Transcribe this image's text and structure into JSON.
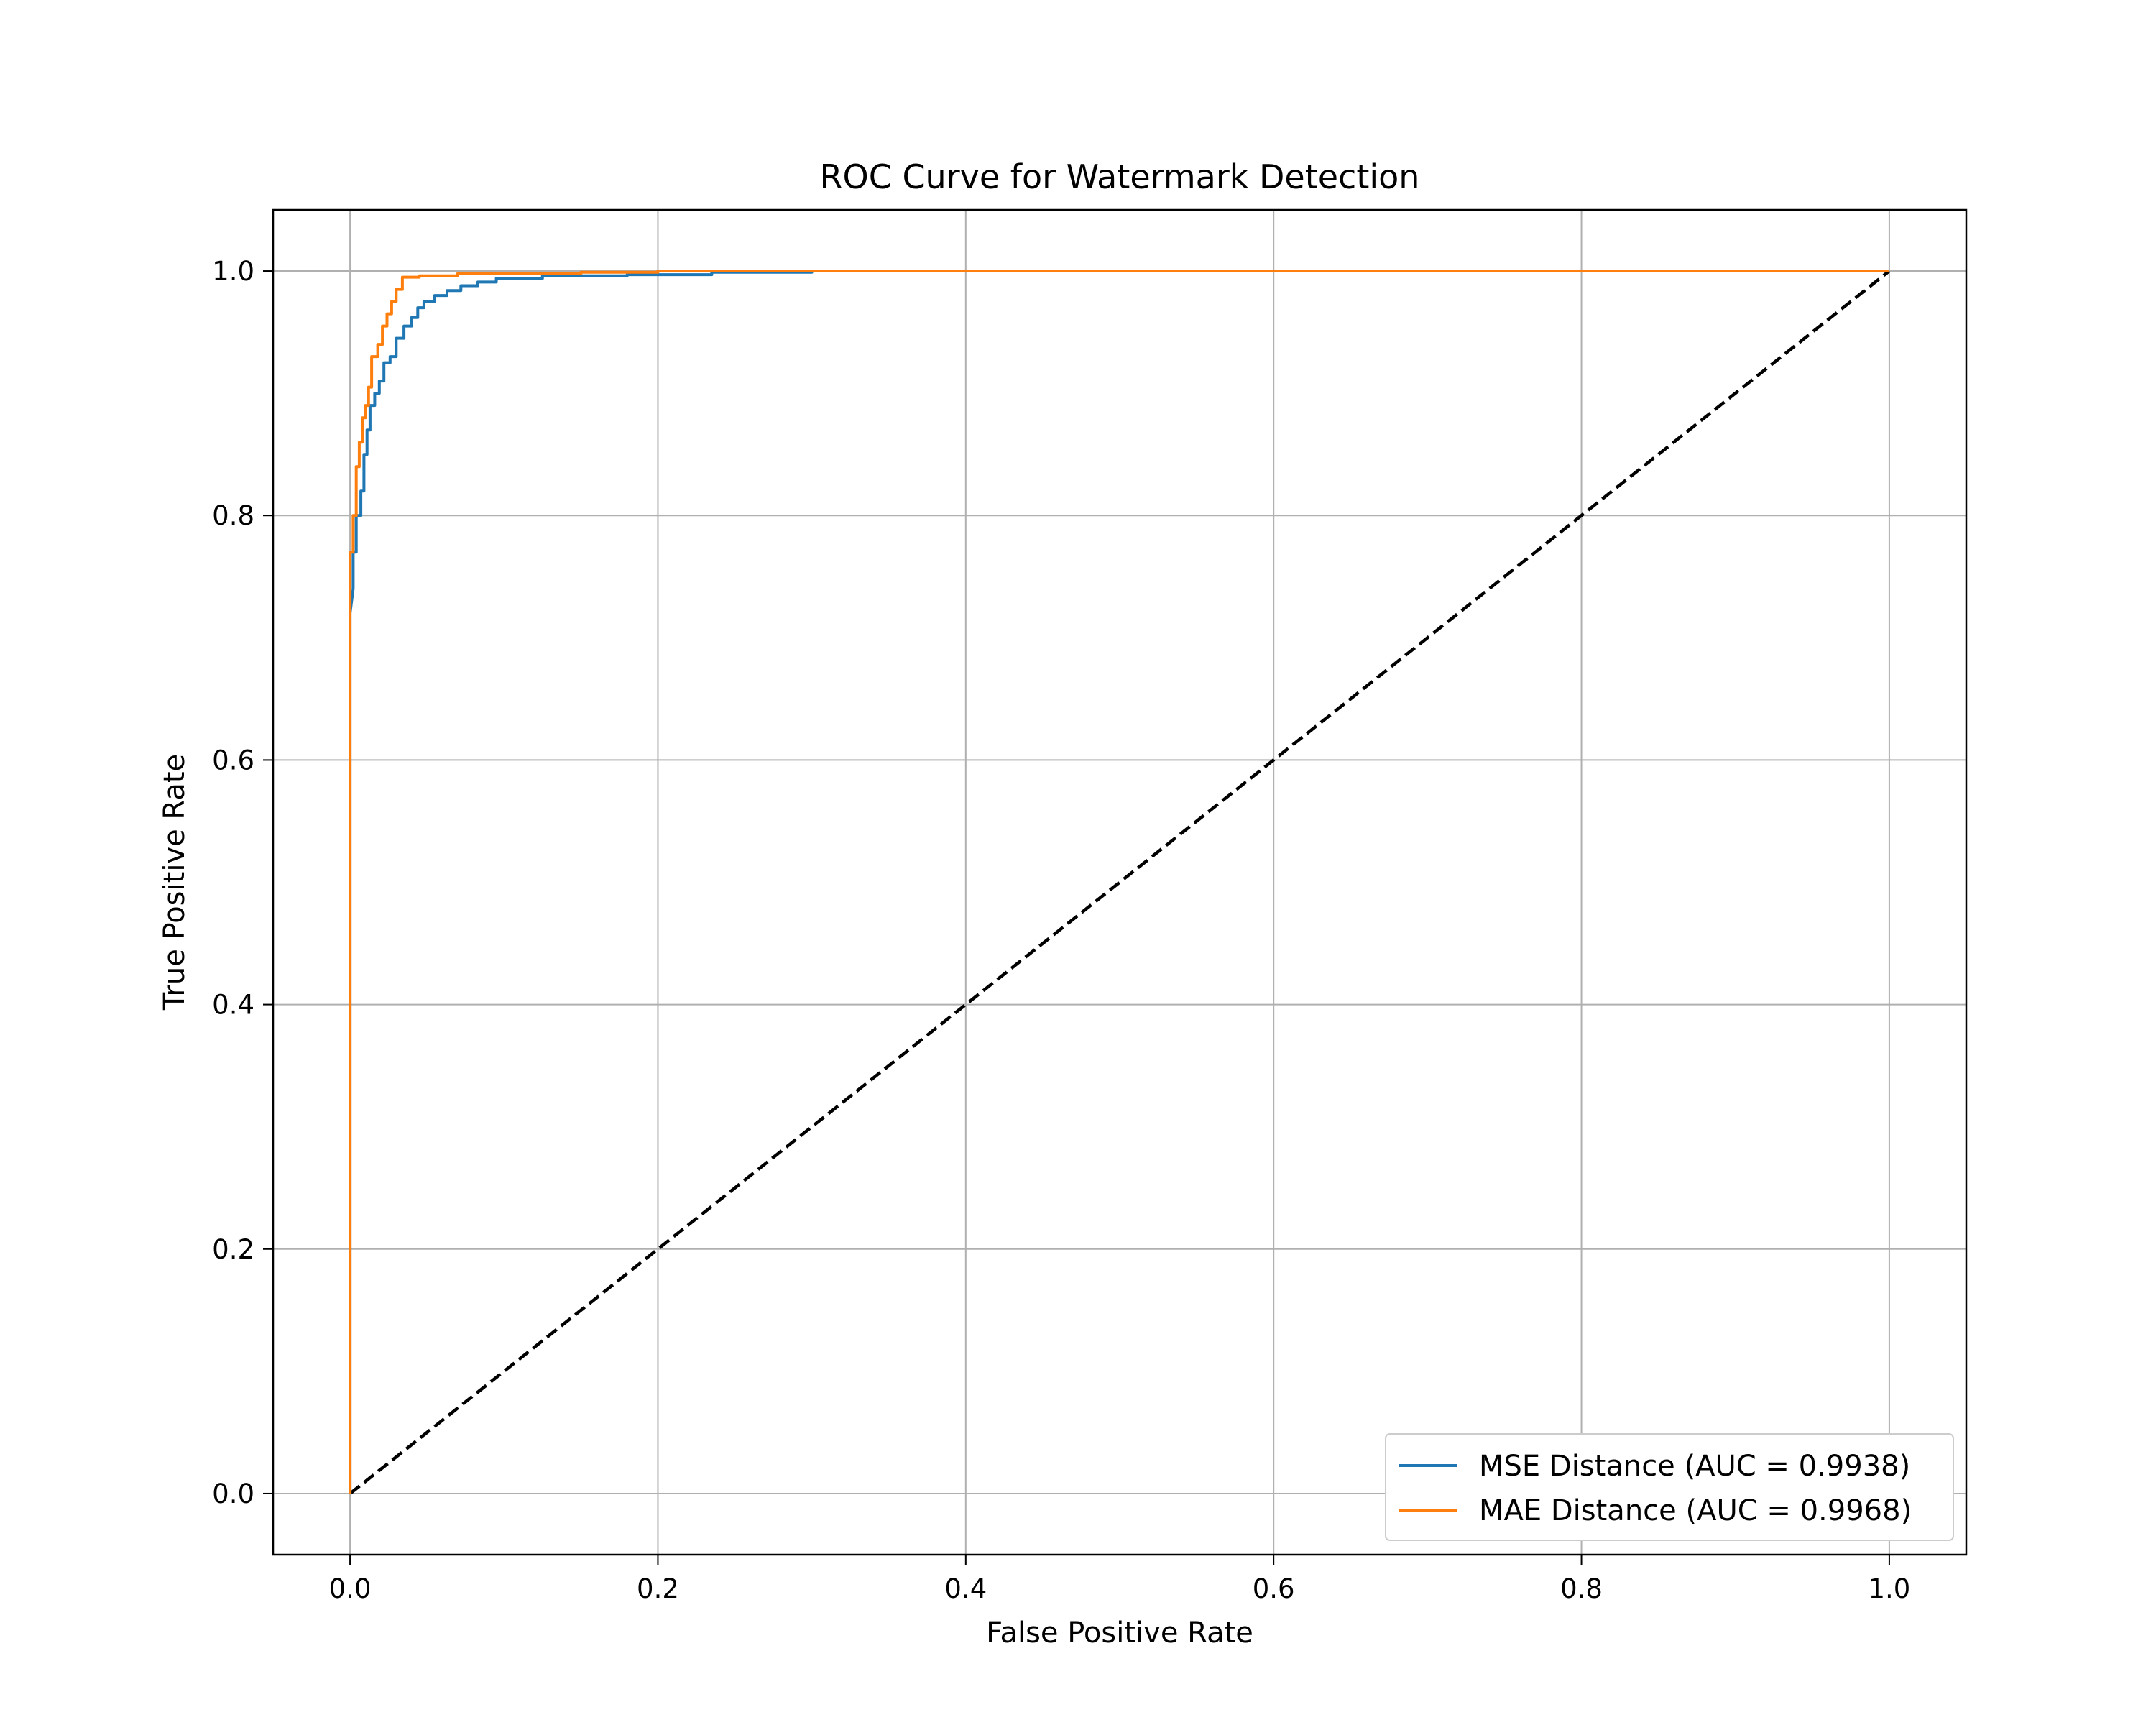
{
  "chart_data": {
    "type": "line",
    "title": "ROC Curve for Watermark Detection",
    "xlabel": "False Positive Rate",
    "ylabel": "True Positive Rate",
    "xlim": [
      -0.05,
      1.05
    ],
    "ylim": [
      -0.05,
      1.05
    ],
    "x_ticks": [
      0.0,
      0.2,
      0.4,
      0.6,
      0.8,
      1.0
    ],
    "y_ticks": [
      0.0,
      0.2,
      0.4,
      0.6,
      0.8,
      1.0
    ],
    "x_tick_labels": [
      "0.0",
      "0.2",
      "0.4",
      "0.6",
      "0.8",
      "1.0"
    ],
    "y_tick_labels": [
      "0.0",
      "0.2",
      "0.4",
      "0.6",
      "0.8",
      "1.0"
    ],
    "grid": true,
    "legend_position": "lower-right",
    "series": [
      {
        "name": "MSE Distance (AUC = 0.9938)",
        "color": "#1f77b4",
        "style": "solid",
        "points": [
          [
            0.0,
            0.0
          ],
          [
            0.0,
            0.72
          ],
          [
            0.002,
            0.74
          ],
          [
            0.002,
            0.77
          ],
          [
            0.004,
            0.77
          ],
          [
            0.004,
            0.8
          ],
          [
            0.007,
            0.8
          ],
          [
            0.007,
            0.82
          ],
          [
            0.009,
            0.82
          ],
          [
            0.009,
            0.85
          ],
          [
            0.011,
            0.85
          ],
          [
            0.011,
            0.87
          ],
          [
            0.013,
            0.87
          ],
          [
            0.013,
            0.89
          ],
          [
            0.016,
            0.89
          ],
          [
            0.016,
            0.9
          ],
          [
            0.019,
            0.9
          ],
          [
            0.019,
            0.91
          ],
          [
            0.022,
            0.91
          ],
          [
            0.022,
            0.925
          ],
          [
            0.026,
            0.925
          ],
          [
            0.026,
            0.93
          ],
          [
            0.03,
            0.93
          ],
          [
            0.03,
            0.945
          ],
          [
            0.035,
            0.945
          ],
          [
            0.035,
            0.955
          ],
          [
            0.04,
            0.955
          ],
          [
            0.04,
            0.962
          ],
          [
            0.044,
            0.962
          ],
          [
            0.044,
            0.97
          ],
          [
            0.048,
            0.97
          ],
          [
            0.048,
            0.975
          ],
          [
            0.055,
            0.975
          ],
          [
            0.055,
            0.98
          ],
          [
            0.063,
            0.98
          ],
          [
            0.063,
            0.984
          ],
          [
            0.072,
            0.984
          ],
          [
            0.072,
            0.988
          ],
          [
            0.083,
            0.988
          ],
          [
            0.083,
            0.991
          ],
          [
            0.095,
            0.991
          ],
          [
            0.095,
            0.994
          ],
          [
            0.125,
            0.994
          ],
          [
            0.125,
            0.996
          ],
          [
            0.18,
            0.996
          ],
          [
            0.18,
            0.997
          ],
          [
            0.235,
            0.997
          ],
          [
            0.235,
            0.999
          ],
          [
            0.3,
            0.999
          ],
          [
            0.3,
            1.0
          ],
          [
            1.0,
            1.0
          ]
        ]
      },
      {
        "name": "MAE Distance (AUC = 0.9968)",
        "color": "#ff7f0e",
        "style": "solid",
        "points": [
          [
            0.0,
            0.0
          ],
          [
            0.0,
            0.77
          ],
          [
            0.002,
            0.77
          ],
          [
            0.002,
            0.8
          ],
          [
            0.004,
            0.8
          ],
          [
            0.004,
            0.84
          ],
          [
            0.006,
            0.84
          ],
          [
            0.006,
            0.86
          ],
          [
            0.008,
            0.86
          ],
          [
            0.008,
            0.88
          ],
          [
            0.01,
            0.88
          ],
          [
            0.01,
            0.89
          ],
          [
            0.012,
            0.89
          ],
          [
            0.012,
            0.905
          ],
          [
            0.014,
            0.905
          ],
          [
            0.014,
            0.93
          ],
          [
            0.018,
            0.93
          ],
          [
            0.018,
            0.94
          ],
          [
            0.021,
            0.94
          ],
          [
            0.021,
            0.955
          ],
          [
            0.024,
            0.955
          ],
          [
            0.024,
            0.965
          ],
          [
            0.027,
            0.965
          ],
          [
            0.027,
            0.975
          ],
          [
            0.03,
            0.975
          ],
          [
            0.03,
            0.985
          ],
          [
            0.034,
            0.985
          ],
          [
            0.034,
            0.995
          ],
          [
            0.045,
            0.995
          ],
          [
            0.045,
            0.996
          ],
          [
            0.07,
            0.996
          ],
          [
            0.07,
            0.998
          ],
          [
            0.15,
            0.998
          ],
          [
            0.15,
            0.999
          ],
          [
            0.2,
            0.999
          ],
          [
            0.2,
            1.0
          ],
          [
            1.0,
            1.0
          ]
        ]
      },
      {
        "name": "",
        "color": "#000000",
        "style": "dashed",
        "points": [
          [
            0.0,
            0.0
          ],
          [
            1.0,
            1.0
          ]
        ]
      }
    ]
  }
}
